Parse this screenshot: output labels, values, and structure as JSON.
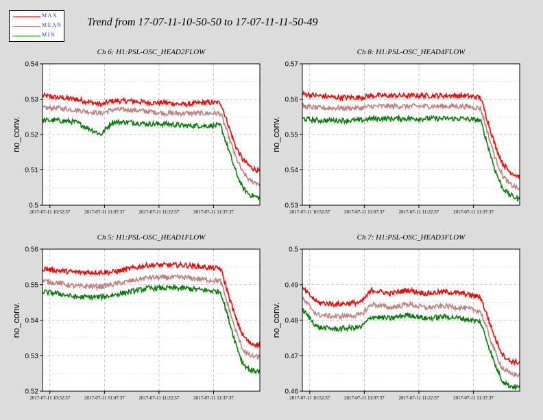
{
  "legend": {
    "items": [
      {
        "label": "MAX",
        "color": "#ff0000"
      },
      {
        "label": "MEAN",
        "color": "#c08080"
      },
      {
        "label": "MIN",
        "color": "#008000"
      }
    ]
  },
  "figure_title": "Trend from 17-07-11-10-50-50 to 17-07-11-11-50-49",
  "chart_data": [
    {
      "type": "line",
      "title": "Ch 6: H1:PSL-OSC_HEAD2FLOW",
      "ylabel": "no_conv.",
      "ylim": [
        0.5,
        0.54
      ],
      "yticks": [
        "0.54",
        "0.53",
        "0.52",
        "0.51",
        "0.5"
      ],
      "xticks": [
        "2017-07-11 10:52:37",
        "2017-07-11 11:07:37",
        "2017-07-11 11:22:37",
        "2017-07-11 11:37:37"
      ],
      "x": [
        "10:50:50",
        "10:55",
        "11:00",
        "11:07",
        "11:10",
        "11:15",
        "11:20",
        "11:25",
        "11:30",
        "11:35",
        "11:40",
        "11:44",
        "11:46",
        "11:48",
        "11:50:49"
      ],
      "series": [
        {
          "name": "MAX",
          "values": [
            0.531,
            0.5305,
            0.53,
            0.5285,
            0.5295,
            0.5295,
            0.529,
            0.529,
            0.5285,
            0.529,
            0.529,
            0.517,
            0.513,
            0.511,
            0.5095
          ]
        },
        {
          "name": "MEAN",
          "values": [
            0.5275,
            0.5275,
            0.527,
            0.526,
            0.527,
            0.527,
            0.5265,
            0.526,
            0.526,
            0.526,
            0.526,
            0.514,
            0.5095,
            0.507,
            0.506
          ]
        },
        {
          "name": "MIN",
          "values": [
            0.524,
            0.524,
            0.5235,
            0.52,
            0.5235,
            0.5235,
            0.523,
            0.523,
            0.5225,
            0.5225,
            0.5225,
            0.51,
            0.505,
            0.503,
            0.502
          ]
        }
      ]
    },
    {
      "type": "line",
      "title": "Ch 8: H1:PSL-OSC_HEAD4FLOW",
      "ylabel": "no_conv.",
      "ylim": [
        0.53,
        0.57
      ],
      "yticks": [
        "0.57",
        "0.56",
        "0.55",
        "0.54",
        "0.53"
      ],
      "xticks": [
        "2017-07-11 10:52:37",
        "2017-07-11 11:07:37",
        "2017-07-11 11:22:37",
        "2017-07-11 11:37:37"
      ],
      "x": [
        "10:50:50",
        "10:55",
        "11:00",
        "11:07",
        "11:10",
        "11:15",
        "11:20",
        "11:25",
        "11:30",
        "11:35",
        "11:40",
        "11:44",
        "11:46",
        "11:48",
        "11:50:49"
      ],
      "series": [
        {
          "name": "MAX",
          "values": [
            0.5615,
            0.561,
            0.5605,
            0.5605,
            0.561,
            0.561,
            0.561,
            0.561,
            0.561,
            0.561,
            0.5605,
            0.547,
            0.542,
            0.5395,
            0.538
          ]
        },
        {
          "name": "MEAN",
          "values": [
            0.558,
            0.5575,
            0.5575,
            0.5575,
            0.558,
            0.558,
            0.558,
            0.558,
            0.558,
            0.558,
            0.5575,
            0.5435,
            0.5385,
            0.536,
            0.5345
          ]
        },
        {
          "name": "MIN",
          "values": [
            0.5545,
            0.554,
            0.554,
            0.554,
            0.5545,
            0.5545,
            0.5545,
            0.5545,
            0.5545,
            0.5545,
            0.554,
            0.54,
            0.535,
            0.533,
            0.5315
          ]
        }
      ]
    },
    {
      "type": "line",
      "title": "Ch 5: H1:PSL-OSC_HEAD1FLOW",
      "ylabel": "no_conv.",
      "ylim": [
        0.52,
        0.56
      ],
      "yticks": [
        "0.56",
        "0.55",
        "0.54",
        "0.53",
        "0.52"
      ],
      "xticks": [
        "2017-07-11 10:52:37",
        "2017-07-11 11:07:37",
        "2017-07-11 11:22:37",
        "2017-07-11 11:37:37"
      ],
      "x": [
        "10:50:50",
        "10:55",
        "11:00",
        "11:07",
        "11:10",
        "11:15",
        "11:20",
        "11:25",
        "11:30",
        "11:35",
        "11:40",
        "11:44",
        "11:46",
        "11:48",
        "11:50:49"
      ],
      "series": [
        {
          "name": "MAX",
          "values": [
            0.5545,
            0.554,
            0.5535,
            0.5535,
            0.5535,
            0.5545,
            0.5555,
            0.5555,
            0.5555,
            0.555,
            0.5545,
            0.541,
            0.536,
            0.5335,
            0.533
          ]
        },
        {
          "name": "MEAN",
          "values": [
            0.551,
            0.5505,
            0.5495,
            0.5495,
            0.55,
            0.551,
            0.552,
            0.552,
            0.552,
            0.5515,
            0.551,
            0.5375,
            0.532,
            0.53,
            0.5295
          ]
        },
        {
          "name": "MIN",
          "values": [
            0.548,
            0.5475,
            0.5465,
            0.5465,
            0.547,
            0.548,
            0.549,
            0.549,
            0.549,
            0.5485,
            0.548,
            0.534,
            0.528,
            0.526,
            0.5255
          ]
        }
      ]
    },
    {
      "type": "line",
      "title": "Ch 7: H1:PSL-OSC_HEAD3FLOW",
      "ylabel": "no_conv.",
      "ylim": [
        0.46,
        0.5
      ],
      "yticks": [
        "0.5",
        "0.49",
        "0.48",
        "0.47",
        "0.46"
      ],
      "xticks": [
        "2017-07-11 10:52:37",
        "2017-07-11 11:07:37",
        "2017-07-11 11:22:37",
        "2017-07-11 11:37:37"
      ],
      "x": [
        "10:50:50",
        "10:55",
        "11:00",
        "11:07",
        "11:10",
        "11:15",
        "11:20",
        "11:25",
        "11:30",
        "11:35",
        "11:40",
        "11:44",
        "11:46",
        "11:48",
        "11:50:49"
      ],
      "series": [
        {
          "name": "MAX",
          "values": [
            0.489,
            0.485,
            0.4845,
            0.485,
            0.4885,
            0.4875,
            0.4885,
            0.4875,
            0.488,
            0.4875,
            0.4865,
            0.475,
            0.4705,
            0.4685,
            0.468
          ]
        },
        {
          "name": "MEAN",
          "values": [
            0.486,
            0.4815,
            0.481,
            0.4815,
            0.4845,
            0.4835,
            0.4845,
            0.4835,
            0.484,
            0.4835,
            0.4825,
            0.471,
            0.4665,
            0.465,
            0.4645
          ]
        },
        {
          "name": "MIN",
          "values": [
            0.483,
            0.478,
            0.4775,
            0.478,
            0.481,
            0.4805,
            0.4815,
            0.4805,
            0.481,
            0.4805,
            0.4795,
            0.4675,
            0.463,
            0.4615,
            0.461
          ]
        }
      ]
    }
  ]
}
